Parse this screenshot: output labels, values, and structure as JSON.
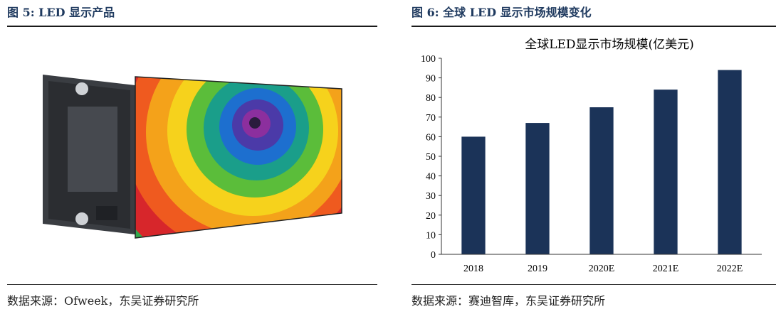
{
  "left": {
    "figure_label": "图 5: LED 显示产品",
    "source": "数据来源：Ofweek，东吴证券研究所"
  },
  "right": {
    "figure_label": "图 6: 全球 LED 显示市场规模变化",
    "source": "数据来源：赛迪智库，东吴证券研究所"
  },
  "colors": {
    "bar": "#1b3358",
    "heading": "#1f3a5f"
  },
  "chart_data": {
    "type": "bar",
    "title": "全球LED显示市场规模(亿美元)",
    "categories": [
      "2018",
      "2019",
      "2020E",
      "2021E",
      "2022E"
    ],
    "values": [
      60,
      67,
      75,
      84,
      94
    ],
    "ylim": [
      0,
      100
    ],
    "yticks": [
      0,
      10,
      20,
      30,
      40,
      50,
      60,
      70,
      80,
      90,
      100
    ],
    "xlabel": "",
    "ylabel": "",
    "grid": false,
    "legend": "none"
  }
}
